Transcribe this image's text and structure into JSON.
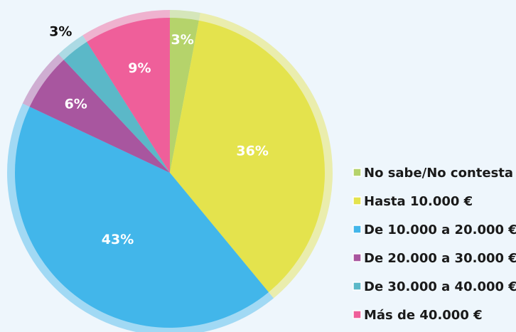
{
  "chart_data": {
    "type": "pie",
    "categories": [
      "No sabe/No contesta",
      "Hasta 10.000 €",
      "De 10.000 a 20.000 €",
      "De 20.000 a 30.000 €",
      "De 30.000 a 40.000 €",
      "Más de 40.000 €"
    ],
    "values": [
      3,
      36,
      43,
      6,
      3,
      9
    ],
    "value_labels": [
      "3%",
      "36%",
      "43%",
      "6%",
      "3%",
      "9%"
    ],
    "colors": [
      "#b5d36b",
      "#e4e34d",
      "#42b6ea",
      "#a8569f",
      "#5bb8c8",
      "#ef5f9a"
    ],
    "legend": "right"
  }
}
